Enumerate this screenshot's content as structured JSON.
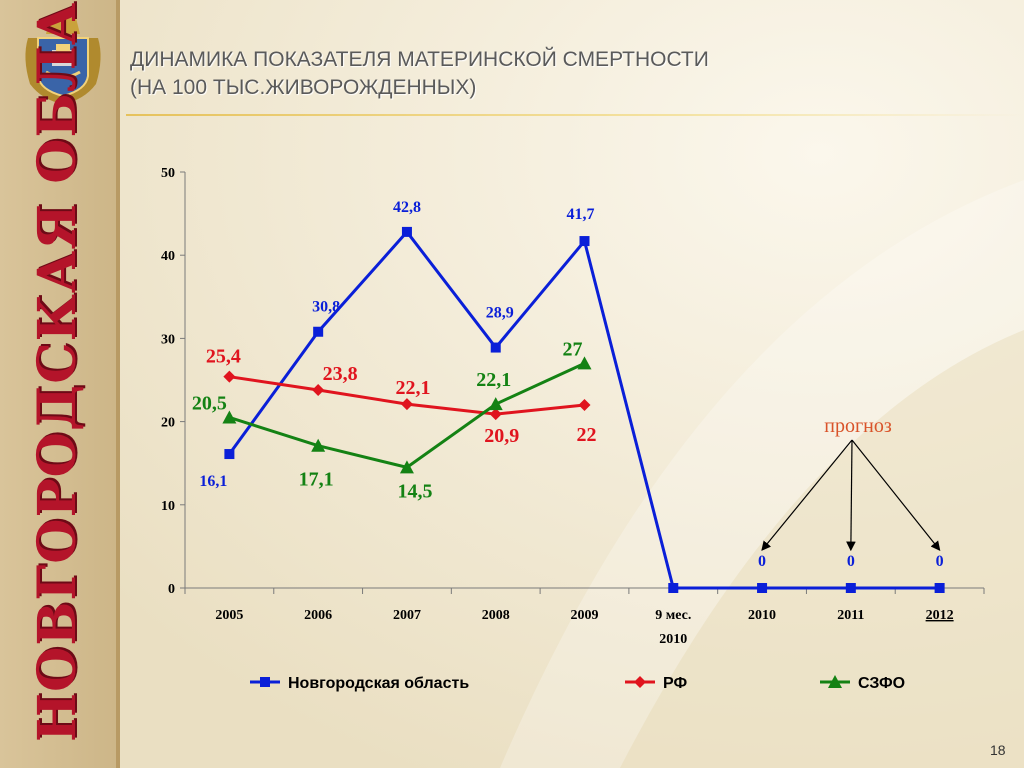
{
  "title_line1": "ДИНАМИКА ПОКАЗАТЕЛЯ МАТЕРИНСКОЙ СМЕРТНОСТИ",
  "title_line2": "(НА 100 ТЫС.ЖИВОРОЖДЕННЫХ)",
  "sidebar_text": "НОВГОРОДСКАЯ ОБЛАСТЬ",
  "page_number": "18",
  "forecast_label": "прогноз",
  "chart_data": {
    "type": "line",
    "categories": [
      "2005",
      "2006",
      "2007",
      "2008",
      "2009",
      "9 мес.\n2010",
      "2010",
      "2011",
      "2012"
    ],
    "ylim": [
      0,
      50
    ],
    "yticks": [
      0,
      10,
      20,
      30,
      40,
      50
    ],
    "grid": false,
    "legend_position": "bottom",
    "series": [
      {
        "name": "Новгородская область",
        "color": "#0a1fd8",
        "marker": "square",
        "values": [
          16.1,
          30.8,
          42.8,
          28.9,
          41.7,
          0,
          0,
          0,
          0
        ],
        "labels": [
          "16,1",
          "30,8",
          "42,8",
          "28,9",
          "41,7",
          null,
          "0",
          "0",
          "0"
        ]
      },
      {
        "name": "РФ",
        "color": "#e0141e",
        "marker": "diamond",
        "values": [
          25.4,
          23.8,
          22.1,
          20.9,
          22,
          null,
          null,
          null,
          null
        ],
        "labels": [
          "25,4",
          "23,8",
          "22,1",
          "20,9",
          "22",
          null,
          null,
          null,
          null
        ]
      },
      {
        "name": "СЗФО",
        "color": "#148214",
        "marker": "triangle",
        "values": [
          20.5,
          17.1,
          14.5,
          22.1,
          27,
          null,
          null,
          null,
          null
        ],
        "labels": [
          "20,5",
          "17,1",
          "14,5",
          "22,1",
          "27",
          null,
          null,
          null,
          null
        ]
      }
    ]
  }
}
